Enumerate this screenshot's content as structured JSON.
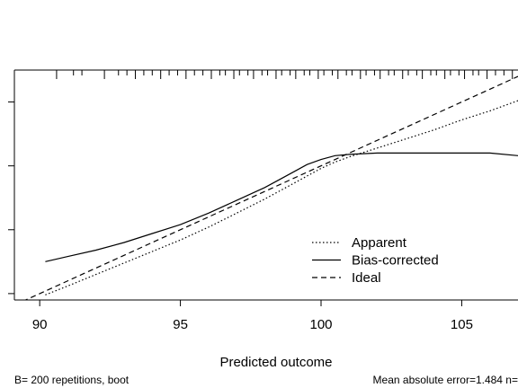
{
  "chart_data": {
    "type": "line",
    "title": "",
    "xlabel": "Predicted outcome",
    "ylabel": "",
    "xlim": [
      89.1,
      107.0
    ],
    "ylim": [
      89.5,
      107.5
    ],
    "x_ticks": [
      90,
      95,
      100,
      105
    ],
    "x_tick_labels": [
      "90",
      "95",
      "100",
      "105"
    ],
    "y_ticks": [
      90,
      95,
      100,
      105
    ],
    "y_tick_labels": [
      "",
      "",
      "",
      ""
    ],
    "grid": false,
    "legend_position": "bottom-right",
    "series": [
      {
        "name": "Apparent",
        "style": "dotted",
        "x": [
          90.2,
          91.0,
          92.0,
          93.0,
          94.0,
          95.0,
          96.0,
          97.0,
          98.0,
          98.5,
          99.0,
          99.5,
          100.0,
          100.5,
          101.0,
          102.0,
          103.0,
          104.0,
          105.0,
          106.0,
          107.0
        ],
        "y": [
          89.9,
          90.6,
          91.5,
          92.4,
          93.3,
          94.2,
          95.2,
          96.3,
          97.4,
          98.0,
          98.6,
          99.2,
          99.8,
          100.3,
          100.7,
          101.4,
          102.1,
          102.8,
          103.6,
          104.3,
          105.1
        ]
      },
      {
        "name": "Bias-corrected",
        "style": "solid",
        "x": [
          90.2,
          91.0,
          92.0,
          93.0,
          94.0,
          95.0,
          96.0,
          97.0,
          98.0,
          98.5,
          99.0,
          99.5,
          100.0,
          100.5,
          101.0,
          102.0,
          103.0,
          104.0,
          105.0,
          106.0,
          107.0
        ],
        "y": [
          92.5,
          92.9,
          93.4,
          94.0,
          94.7,
          95.4,
          96.3,
          97.3,
          98.3,
          98.9,
          99.5,
          100.1,
          100.5,
          100.8,
          100.9,
          101.0,
          101.0,
          101.0,
          101.0,
          101.0,
          100.8
        ]
      },
      {
        "name": "Ideal",
        "style": "dashed",
        "x": [
          89.1,
          107.0
        ],
        "y": [
          89.1,
          107.0
        ]
      }
    ],
    "rug_x": [
      90.6,
      91.2,
      91.5,
      92.3,
      92.8,
      93.1,
      93.4,
      93.7,
      94.0,
      94.3,
      94.6,
      94.9,
      95.2,
      95.5,
      95.8,
      96.1,
      96.4,
      96.6,
      96.9,
      97.1,
      97.4,
      97.6,
      97.9,
      98.1,
      98.4,
      98.6,
      98.9,
      99.1,
      99.4,
      99.6,
      99.9,
      100.1,
      100.4,
      100.6,
      100.9,
      101.1,
      101.4,
      101.6,
      101.9,
      102.1,
      102.4,
      102.6,
      102.9,
      103.1,
      103.4,
      103.6,
      103.9,
      104.1,
      104.4,
      104.6,
      104.9,
      105.1,
      105.4,
      105.6,
      105.9,
      106.2,
      106.5,
      106.8
    ],
    "footnote_left": "B= 200 repetitions, boot",
    "footnote_right": "Mean absolute error=1.484 n="
  }
}
